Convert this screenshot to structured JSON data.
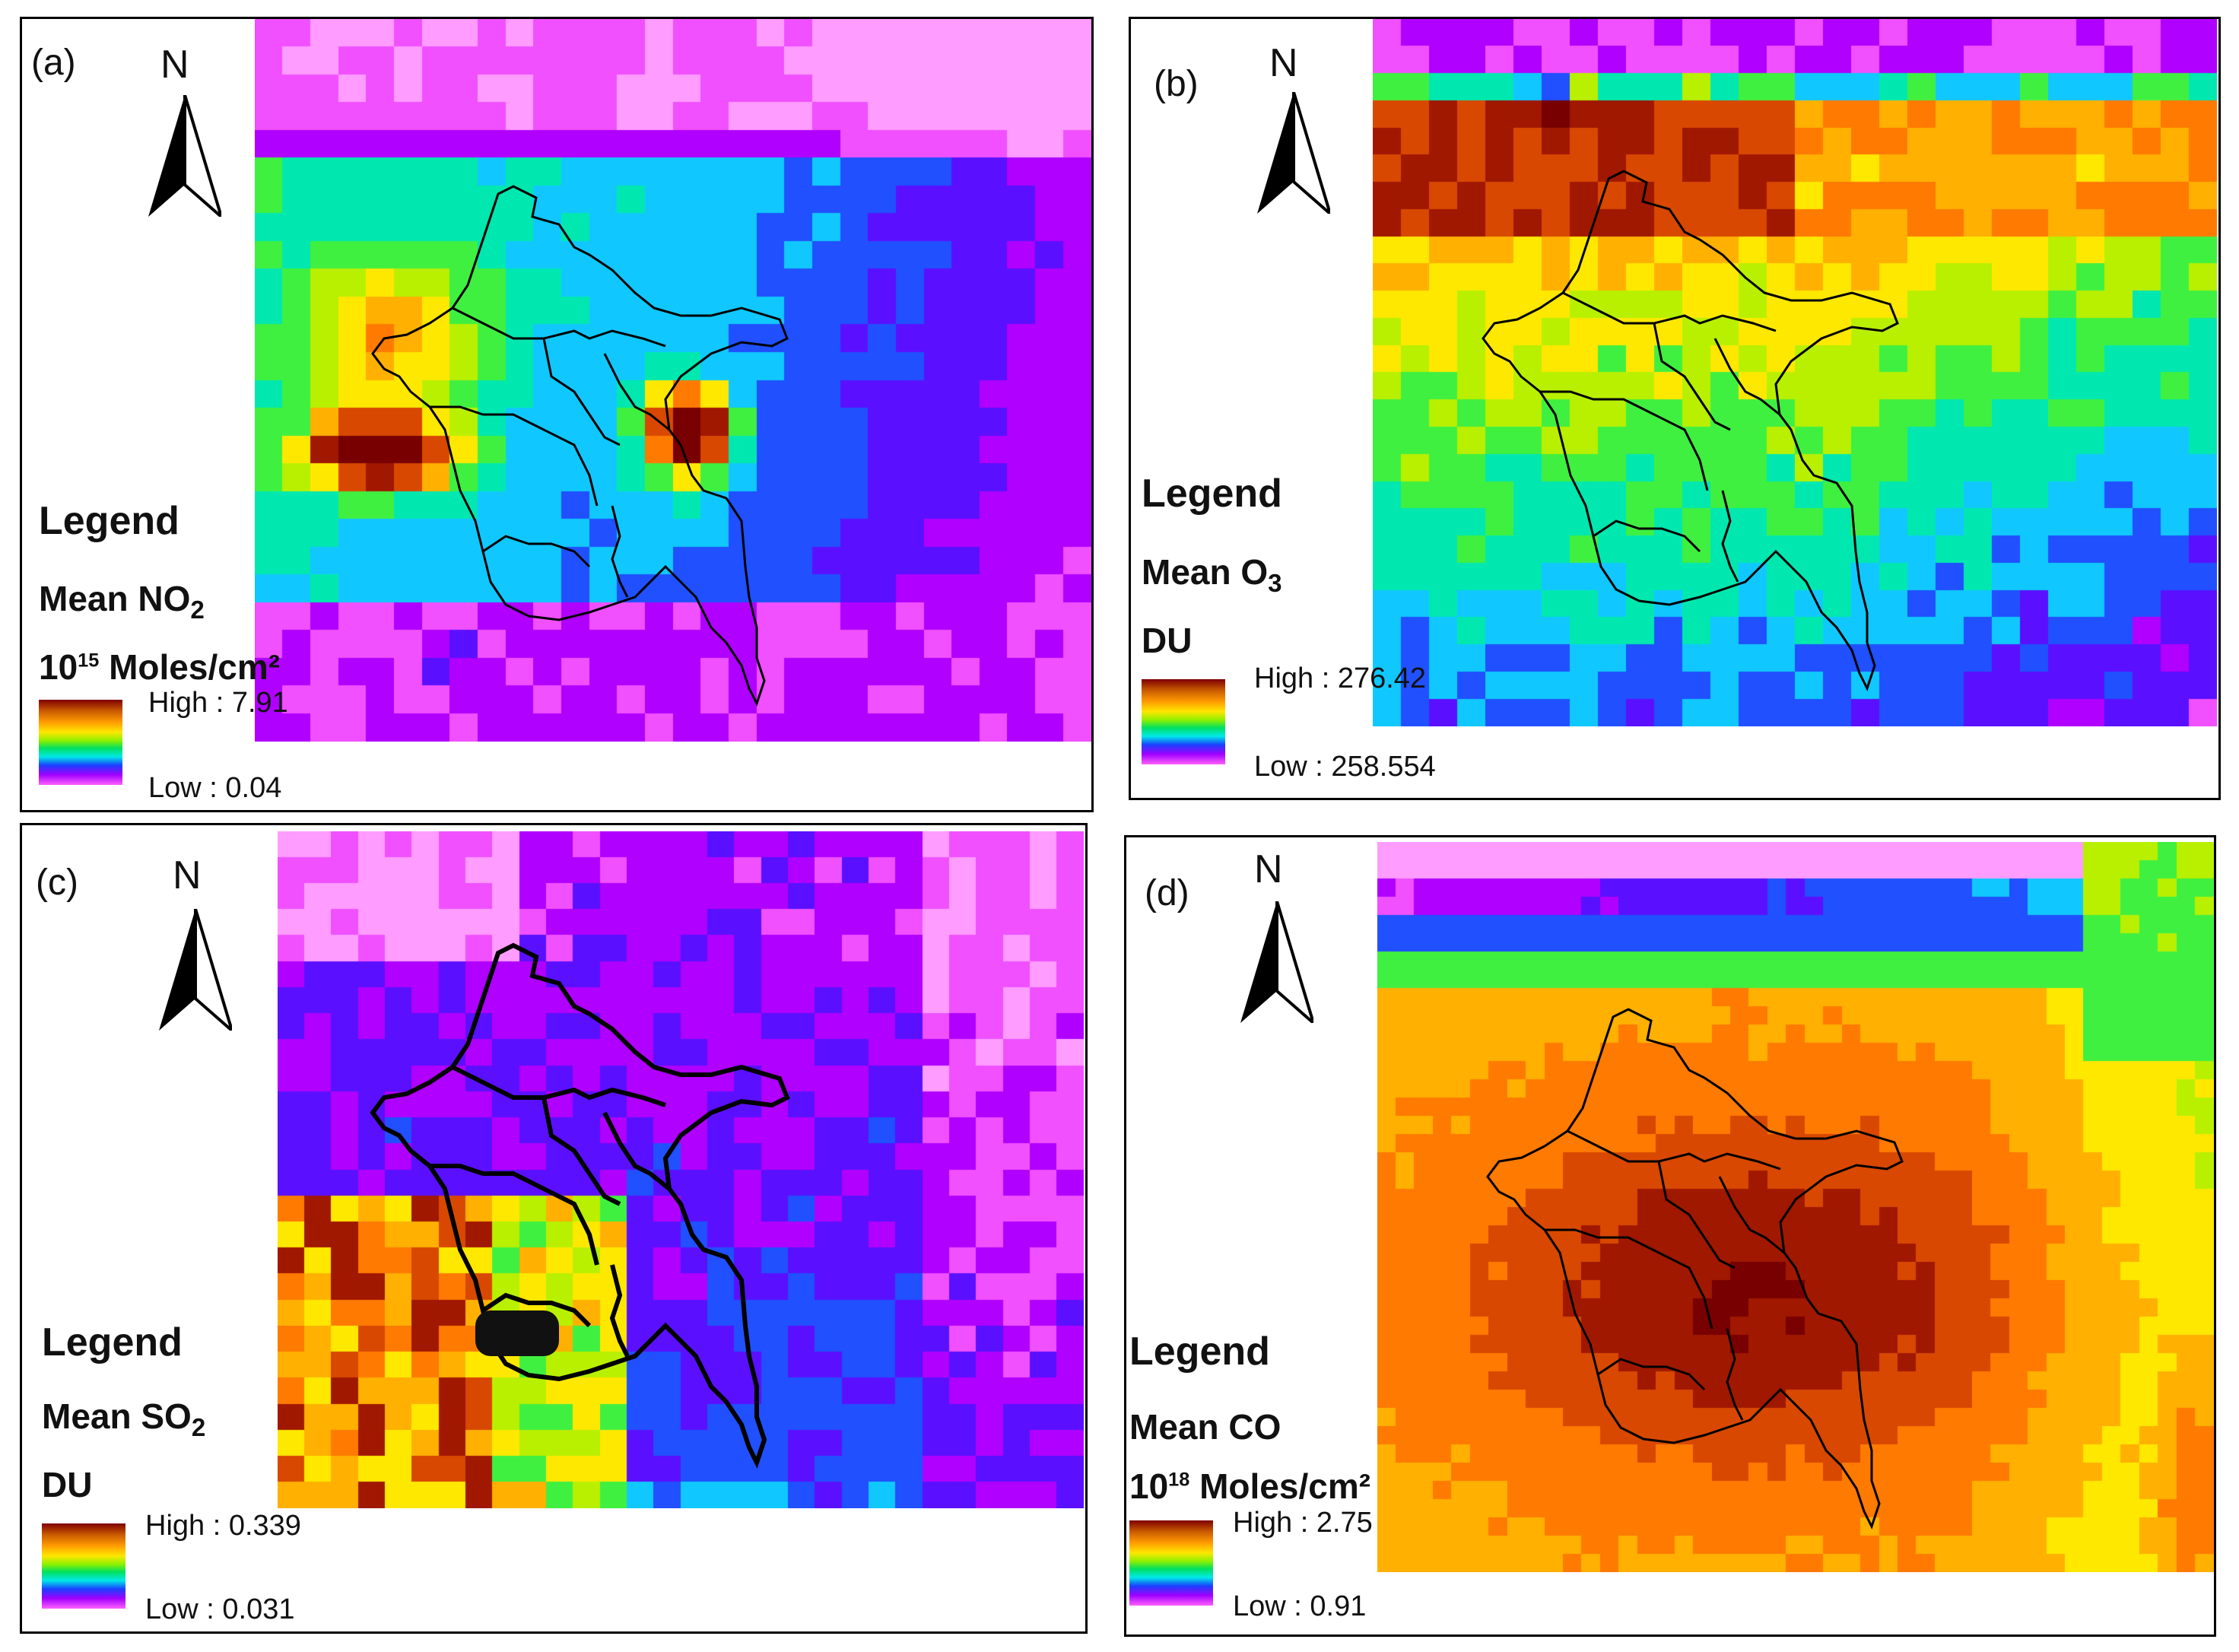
{
  "panels": [
    {
      "id": "a",
      "label": "(a)",
      "north": "N",
      "legend_title": "Legend",
      "variable": "Mean NO",
      "variable_sub": "2",
      "unit_sup": "15",
      "unit_pre": "10",
      "unit_post": " Moles/cm²",
      "high_label": "High : 7.91",
      "low_label": "Low : 0.04",
      "high": 7.91,
      "low": 0.04
    },
    {
      "id": "b",
      "label": "(b)",
      "north": "N",
      "legend_title": "Legend",
      "variable": "Mean O",
      "variable_sub": "3",
      "unit_text": "DU",
      "high_label": "High : 276.42",
      "low_label": "Low : 258.554",
      "high": 276.42,
      "low": 258.554
    },
    {
      "id": "c",
      "label": "(c)",
      "north": "N",
      "legend_title": "Legend",
      "variable": "Mean SO",
      "variable_sub": "2",
      "unit_text": "DU",
      "high_label": "High : 0.339",
      "low_label": "Low : 0.031",
      "high": 0.339,
      "low": 0.031
    },
    {
      "id": "d",
      "label": "(d)",
      "north": "N",
      "legend_title": "Legend",
      "variable": "Mean CO",
      "unit_pre": "10",
      "unit_sup": "18",
      "unit_post": " Moles/cm²",
      "high_label": "High : 2.75",
      "low_label": "Low : 0.91",
      "high": 2.75,
      "low": 0.91
    }
  ],
  "colormap": [
    "#ff9cff",
    "#f050ff",
    "#b000ff",
    "#5a10ff",
    "#2050ff",
    "#10c8ff",
    "#00e8b0",
    "#40f040",
    "#b8f000",
    "#ffe800",
    "#ffb000",
    "#ff7a00",
    "#d84800",
    "#a01800",
    "#780000"
  ]
}
